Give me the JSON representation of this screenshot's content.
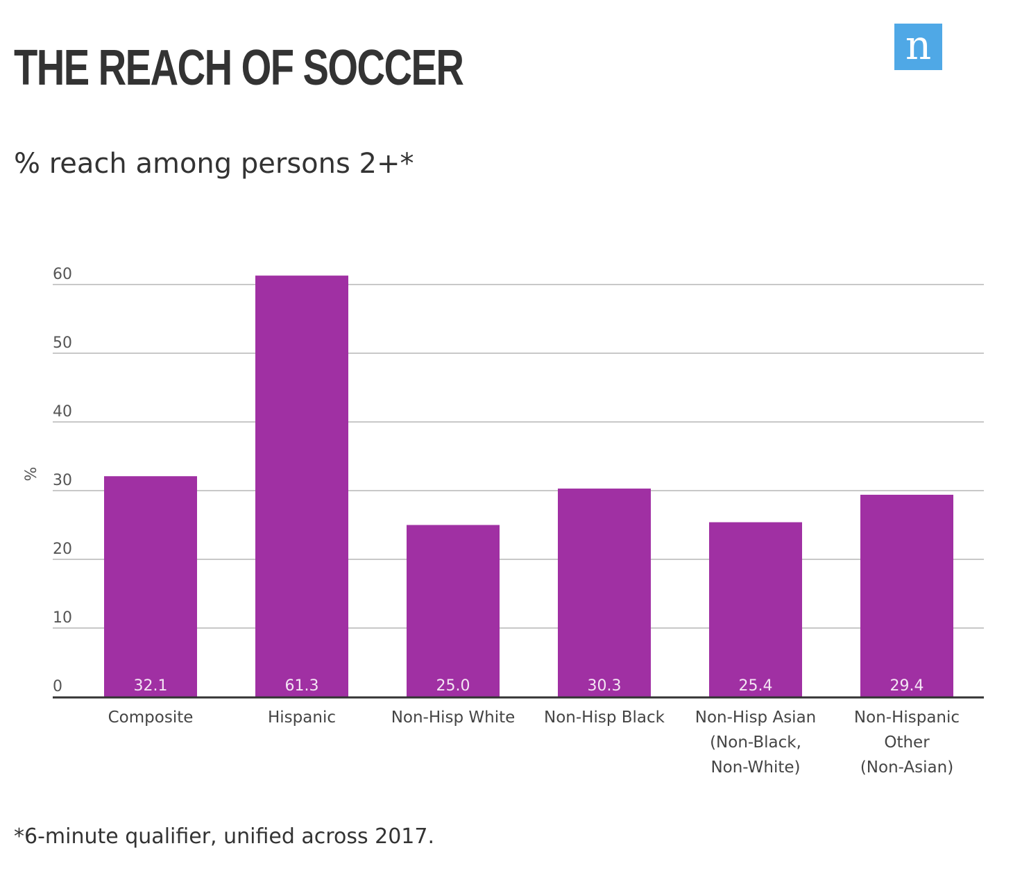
{
  "header": {
    "title": "THE REACH OF SOCCER",
    "logo_letter": "n"
  },
  "subtitle": "% reach among persons 2+*",
  "footnote": "*6-minute qualifier, unified across 2017.",
  "colors": {
    "bar": "#a030a3",
    "grid": "#b5b5b5",
    "axis": "#333333",
    "logo": "#4fa8e6"
  },
  "chart_data": {
    "type": "bar",
    "title": "THE REACH OF SOCCER",
    "subtitle": "% reach among persons 2+*",
    "xlabel": "",
    "ylabel": "%",
    "ylim": [
      0,
      60
    ],
    "yticks": [
      0,
      10,
      20,
      30,
      40,
      50,
      60
    ],
    "grid": true,
    "categories": [
      [
        "Composite"
      ],
      [
        "Hispanic"
      ],
      [
        "Non-Hisp White"
      ],
      [
        "Non-Hisp Black"
      ],
      [
        "Non-Hisp Asian",
        "(Non-Black,",
        "Non-White)"
      ],
      [
        "Non-Hispanic",
        "Other",
        "(Non-Asian)"
      ]
    ],
    "values": [
      32.1,
      61.3,
      25.0,
      30.3,
      25.4,
      29.4
    ],
    "value_labels": [
      "32.1",
      "61.3",
      "25.0",
      "30.3",
      "25.4",
      "29.4"
    ]
  }
}
